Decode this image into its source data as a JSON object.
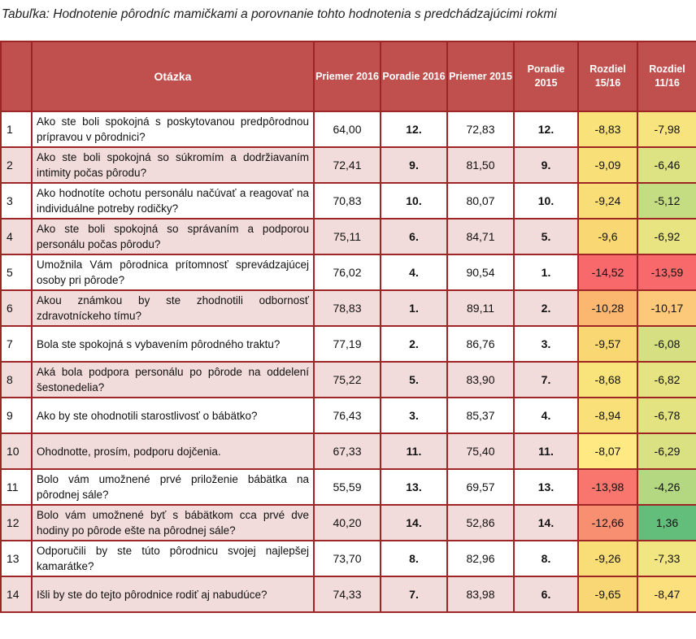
{
  "caption": "Tabuľka: Hodnotenie pôrodníc mamičkami a porovnanie tohto hodnotenia s predchádzajúcimi rokmi",
  "headers": {
    "question": "Otázka",
    "avg2016": "Priemer 2016",
    "rank2016": "Poradie 2016",
    "avg2015": "Priemer 2015",
    "rank2015": "Poradie 2015",
    "diff1516": "Rozdiel 15/16",
    "diff1116": "Rozdiel 11/16"
  },
  "rows": [
    {
      "n": "1",
      "q": "Ako ste boli spokojná s poskytovanou predpôrodnou prípravou v pôrodnici?",
      "a16": "64,00",
      "r16": "12.",
      "a15": "72,83",
      "r15": "12.",
      "d1516": "-8,83",
      "d1116": "-7,98",
      "c1516": "#f9e27a",
      "c1116": "#f7e47e"
    },
    {
      "n": "2",
      "q": "Ako ste boli spokojná so súkromím a dodržiavaním intimity počas pôrodu?",
      "a16": "72,41",
      "r16": "9.",
      "a15": "81,50",
      "r15": "9.",
      "d1516": "-9,09",
      "d1116": "-6,46",
      "c1516": "#f9df78",
      "c1116": "#dde283"
    },
    {
      "n": "3",
      "q": "Ako hodnotíte ochotu personálu načúvať a reagovať na individuálne potreby rodičky?",
      "a16": "70,83",
      "r16": "10.",
      "a15": "80,07",
      "r15": "10.",
      "d1516": "-9,24",
      "d1116": "-5,12",
      "c1516": "#f9dd77",
      "c1116": "#c4dd83"
    },
    {
      "n": "4",
      "q": "Ako ste boli spokojná so správaním a podporou personálu počas pôrodu?",
      "a16": "75,11",
      "r16": "6.",
      "a15": "84,71",
      "r15": "5.",
      "d1516": "-9,6",
      "d1116": "-6,92",
      "c1516": "#f9d874",
      "c1116": "#e8e482"
    },
    {
      "n": "5",
      "q": "Umožnila Vám pôrodnica prítomnosť sprevádzajúcej osoby pri pôrode?",
      "a16": "76,02",
      "r16": "4.",
      "a15": "90,54",
      "r15": "1.",
      "d1516": "-14,52",
      "d1116": "-13,59",
      "c1516": "#f8696b",
      "c1116": "#f8696b"
    },
    {
      "n": "6",
      "q": "Akou známkou by ste zhodnotili odbornosť zdravotníckeho tímu?",
      "a16": "78,83",
      "r16": "1.",
      "a15": "89,11",
      "r15": "2.",
      "d1516": "-10,28",
      "d1116": "-10,17",
      "c1516": "#fbb66f",
      "c1116": "#fbc979"
    },
    {
      "n": "7",
      "q": "Bola ste spokojná s vybavením pôrodného traktu?",
      "a16": "77,19",
      "r16": "2.",
      "a15": "86,76",
      "r15": "3.",
      "d1516": "-9,57",
      "d1116": "-6,08",
      "c1516": "#f9d874",
      "c1116": "#d6e083"
    },
    {
      "n": "8",
      "q": "Aká bola podpora personálu po pôrode na oddelení šestonedelia?",
      "a16": "75,22",
      "r16": "5.",
      "a15": "83,90",
      "r15": "7.",
      "d1516": "-8,68",
      "d1116": "-6,82",
      "c1516": "#f9e37b",
      "c1116": "#e6e482"
    },
    {
      "n": "9",
      "q": "Ako by ste ohodnotili starostlivosť o bábätko?",
      "a16": "76,43",
      "r16": "3.",
      "a15": "85,37",
      "r15": "4.",
      "d1516": "-8,94",
      "d1116": "-6,78",
      "c1516": "#f9e079",
      "c1116": "#e4e382"
    },
    {
      "n": "10",
      "q": "Ohodnotte, prosím, podporu dojčenia.",
      "a16": "67,33",
      "r16": "11.",
      "a15": "75,40",
      "r15": "11.",
      "d1516": "-8,07",
      "d1116": "-6,29",
      "c1516": "#fee983",
      "c1116": "#dae183"
    },
    {
      "n": "11",
      "q": "Bolo vám umožnené prvé priloženie bábätka na pôrodnej sále?",
      "a16": "55,59",
      "r16": "13.",
      "a15": "69,57",
      "r15": "13.",
      "d1516": "-13,98",
      "d1116": "-4,26",
      "c1516": "#f8766d",
      "c1116": "#b4d881"
    },
    {
      "n": "12",
      "q": "Bolo vám umožnené byť s bábätkom cca prvé dve hodiny po pôrode ešte na pôrodnej sále?",
      "a16": "40,20",
      "r16": "14.",
      "a15": "52,86",
      "r15": "14.",
      "d1516": "-12,66",
      "d1116": "1,36",
      "c1516": "#f98f71",
      "c1116": "#63be7b"
    },
    {
      "n": "13",
      "q": "Odporučili by ste túto pôrodnicu svojej najlepšej kamarátke?",
      "a16": "73,70",
      "r16": "8.",
      "a15": "82,96",
      "r15": "8.",
      "d1516": "-9,26",
      "d1116": "-7,33",
      "c1516": "#f9dd77",
      "c1116": "#f1e682"
    },
    {
      "n": "14",
      "q": "Išli by ste do tejto pôrodnice rodiť aj nabudúce?",
      "a16": "74,33",
      "r16": "7.",
      "a15": "83,98",
      "r15": "6.",
      "d1516": "-9,65",
      "d1116": "-8,47",
      "c1516": "#f9d774",
      "c1116": "#fce07e"
    }
  ]
}
